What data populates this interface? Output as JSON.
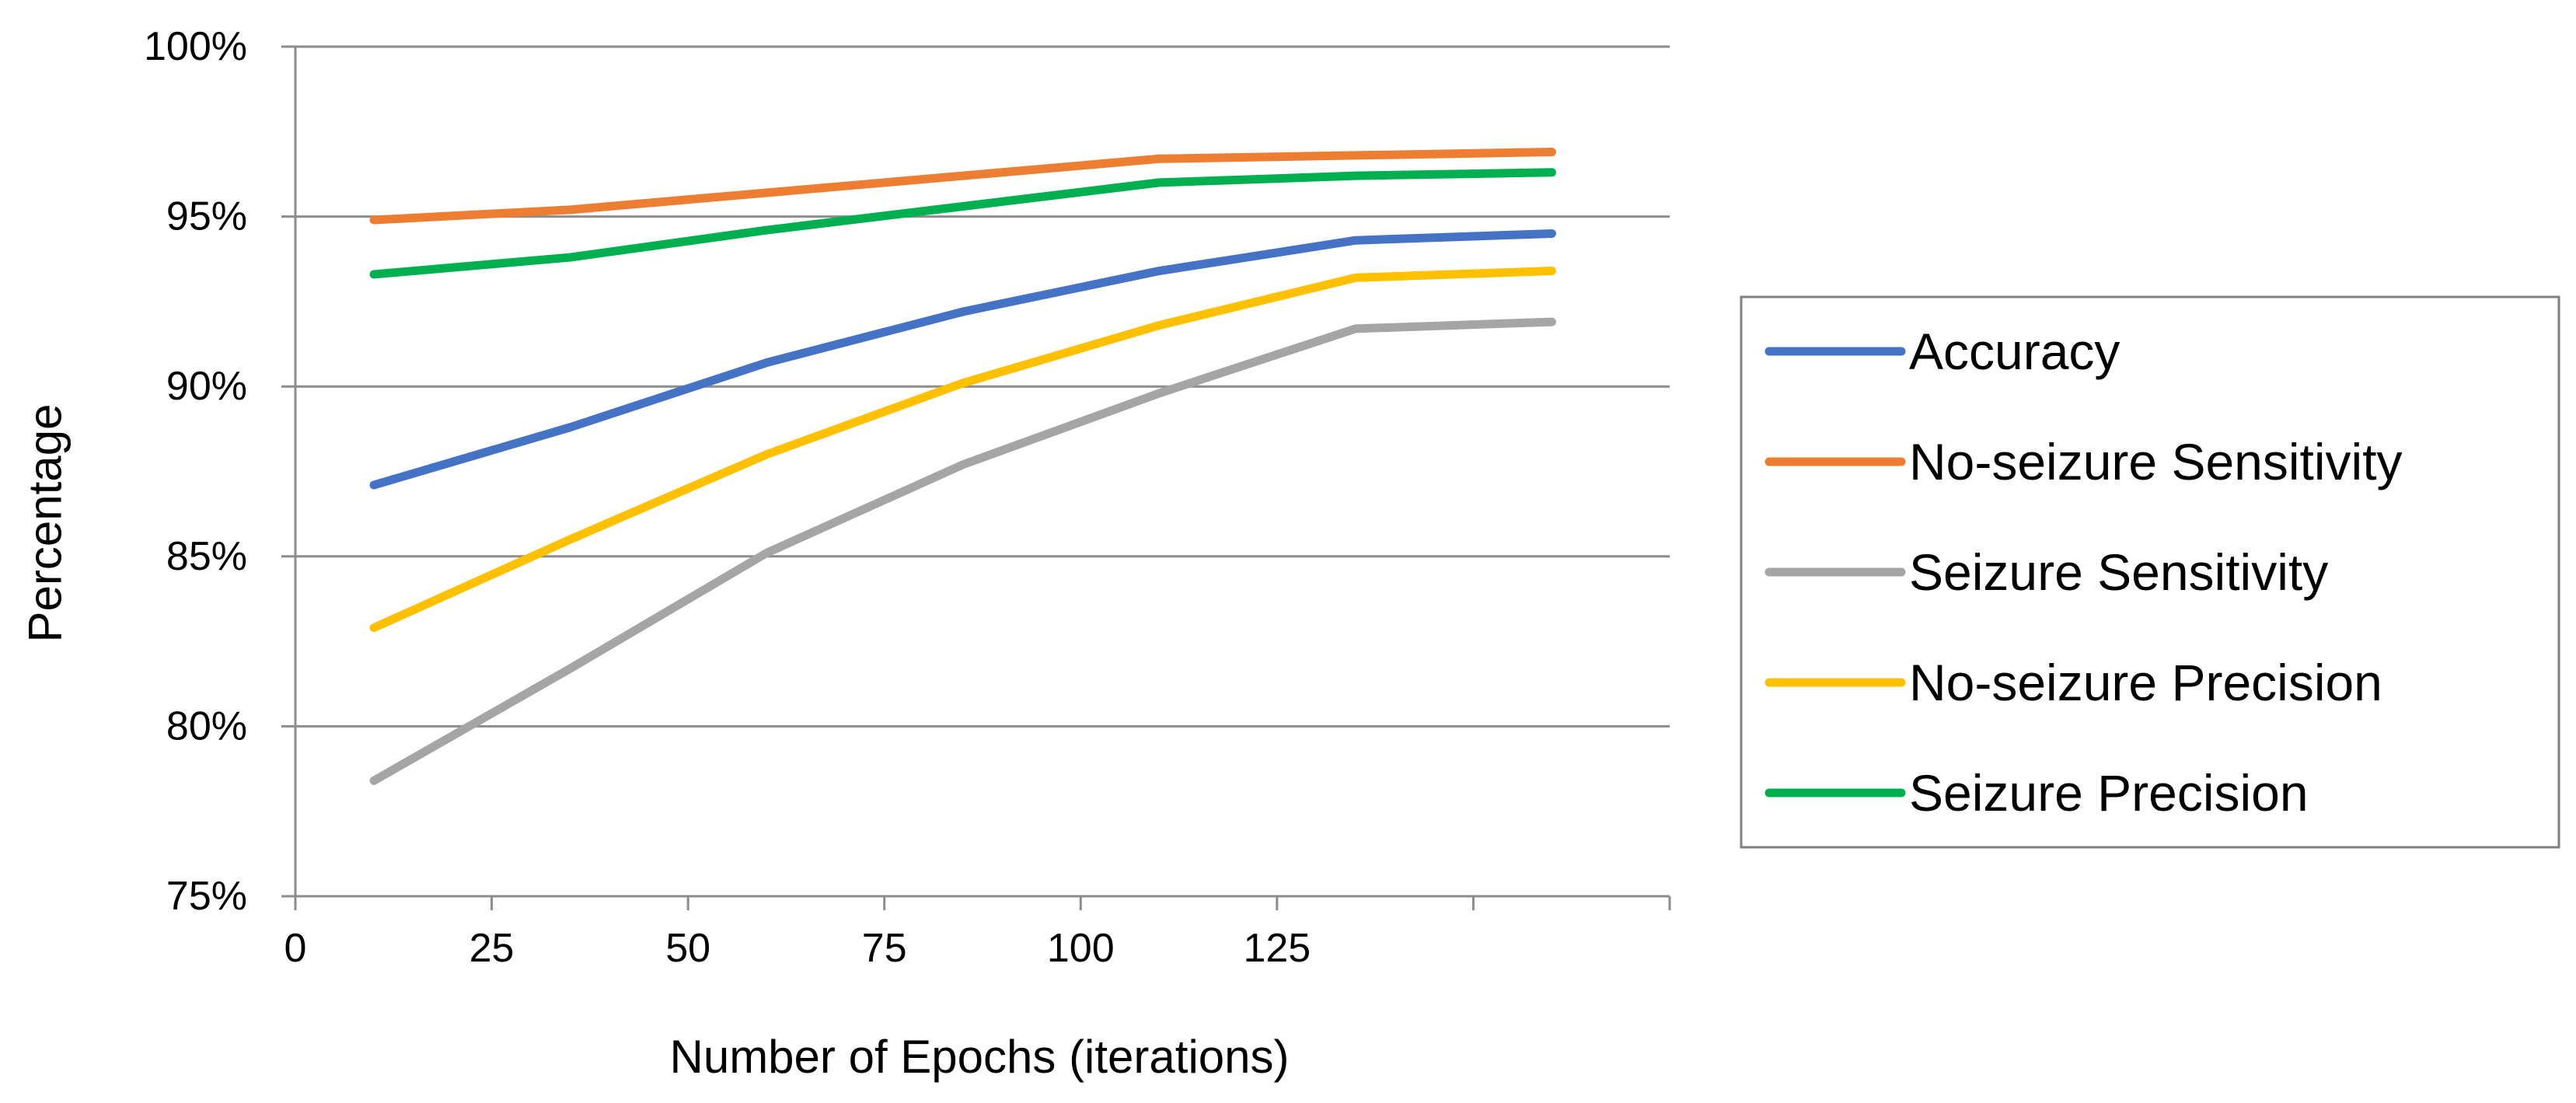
{
  "chart_data": {
    "type": "line",
    "title": "",
    "xlabel": "Number of Epochs (iterations)",
    "ylabel": "Percentage",
    "x": [
      10,
      35,
      60,
      85,
      110,
      135,
      160
    ],
    "x_range": [
      0,
      175
    ],
    "x_ticks": [
      0,
      25,
      50,
      75,
      100,
      125,
      150,
      175
    ],
    "x_tick_labels": [
      "0",
      "25",
      "50",
      "75",
      "100",
      "125",
      "",
      ""
    ],
    "ylim": [
      75,
      100
    ],
    "y_ticks": [
      75,
      80,
      85,
      90,
      95,
      100
    ],
    "y_tick_labels": [
      "75%",
      "80%",
      "85%",
      "90%",
      "95%",
      "100%"
    ],
    "grid": true,
    "legend_position": "right",
    "series": [
      {
        "name": "Accuracy",
        "color": "#4472C4",
        "values": [
          87.1,
          88.8,
          90.7,
          92.2,
          93.4,
          94.3,
          94.5
        ]
      },
      {
        "name": "No-seizure Sensitivity",
        "color": "#ED7D31",
        "values": [
          94.9,
          95.2,
          95.7,
          96.2,
          96.7,
          96.8,
          96.9
        ]
      },
      {
        "name": "Seizure Sensitivity",
        "color": "#A5A5A5",
        "values": [
          78.4,
          81.7,
          85.1,
          87.7,
          89.8,
          91.7,
          91.9
        ]
      },
      {
        "name": "No-seizure Precision",
        "color": "#FFC000",
        "values": [
          82.9,
          85.5,
          88.0,
          90.1,
          91.8,
          93.2,
          93.4
        ]
      },
      {
        "name": "Seizure Precision",
        "color": "#00B050",
        "values": [
          93.3,
          93.8,
          94.6,
          95.3,
          96.0,
          96.2,
          96.3
        ]
      }
    ]
  }
}
